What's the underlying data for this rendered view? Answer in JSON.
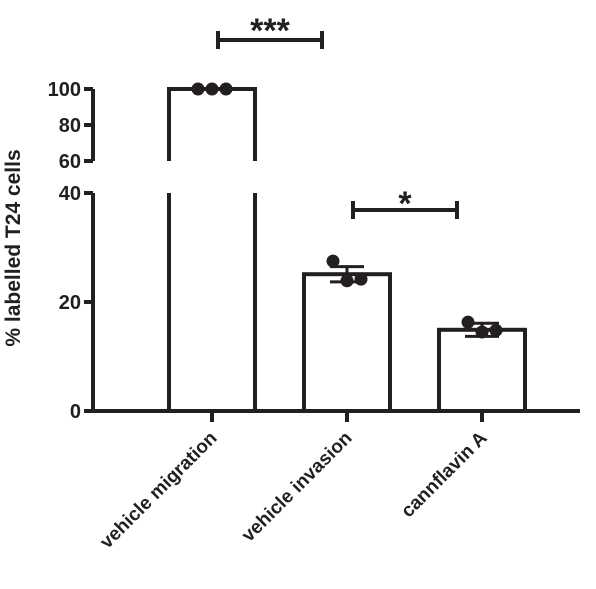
{
  "chart_data": {
    "type": "bar",
    "ylabel": "% labelled T24 cells",
    "xlabel": "",
    "title": "",
    "categories": [
      "vehicle migration",
      "vehicle invasion",
      "cannflavin A"
    ],
    "values": [
      100,
      25.1,
      14.9
    ],
    "error": [
      0,
      1.4,
      1.2
    ],
    "points": [
      [
        100,
        100,
        100
      ],
      [
        27.5,
        23.9,
        24.2
      ],
      [
        16.3,
        14.5,
        14.8
      ]
    ],
    "y_axis_segments": [
      {
        "range": [
          0,
          40
        ],
        "ticks": [
          0,
          20,
          40
        ],
        "tick_labels": [
          "0",
          "20",
          "40"
        ]
      },
      {
        "range": [
          60,
          100
        ],
        "ticks": [
          60,
          80,
          100
        ],
        "tick_labels": [
          "60",
          "80",
          "100"
        ]
      }
    ],
    "axis_break": true,
    "grid": false,
    "legend": "none",
    "bar_fill": "#ffffff",
    "stroke_color": "#231f20",
    "significance": [
      {
        "between": [
          "vehicle migration",
          "vehicle invasion"
        ],
        "label": "***"
      },
      {
        "between": [
          "vehicle invasion",
          "cannflavin A"
        ],
        "label": "*"
      }
    ]
  }
}
